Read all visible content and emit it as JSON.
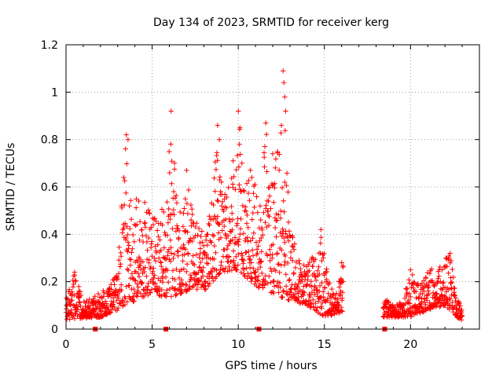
{
  "chart_data": {
    "type": "scatter",
    "title": "Day 134 of 2023, SRMTID for receiver kerg",
    "xlabel": "GPS time / hours",
    "ylabel": "SRMTID / TECUs",
    "xlim": [
      0,
      24
    ],
    "ylim": [
      0,
      1.2
    ],
    "xticks": [
      0,
      5,
      10,
      15,
      20
    ],
    "xtick_labels": [
      "0",
      "5",
      "10",
      "15",
      "20"
    ],
    "yticks": [
      0,
      0.2,
      0.4,
      0.6,
      0.8,
      1.0,
      1.2
    ],
    "ytick_labels": [
      "0",
      "0.2",
      "0.4",
      "0.6",
      "0.8",
      "1",
      "1.2"
    ],
    "grid": true,
    "marker": "+",
    "series_color": "#ff0000",
    "data_gaps_hours": [
      [
        16.1,
        18.4
      ]
    ],
    "event_markers_x": [
      1.7,
      5.8,
      11.2,
      18.5
    ],
    "series": [
      {
        "name": "SRMTID",
        "envelope": [
          {
            "x": 0.0,
            "y": 0.14
          },
          {
            "x": 0.5,
            "y": 0.24
          },
          {
            "x": 1.0,
            "y": 0.12
          },
          {
            "x": 1.5,
            "y": 0.13
          },
          {
            "x": 2.0,
            "y": 0.16
          },
          {
            "x": 2.5,
            "y": 0.17
          },
          {
            "x": 3.0,
            "y": 0.26
          },
          {
            "x": 3.3,
            "y": 0.63
          },
          {
            "x": 3.5,
            "y": 0.82
          },
          {
            "x": 3.9,
            "y": 0.55
          },
          {
            "x": 4.4,
            "y": 0.57
          },
          {
            "x": 4.9,
            "y": 0.52
          },
          {
            "x": 5.3,
            "y": 0.45
          },
          {
            "x": 5.8,
            "y": 0.6
          },
          {
            "x": 6.1,
            "y": 0.92
          },
          {
            "x": 6.5,
            "y": 0.47
          },
          {
            "x": 7.0,
            "y": 0.67
          },
          {
            "x": 7.5,
            "y": 0.47
          },
          {
            "x": 8.0,
            "y": 0.4
          },
          {
            "x": 8.5,
            "y": 0.55
          },
          {
            "x": 8.8,
            "y": 0.86
          },
          {
            "x": 9.3,
            "y": 0.55
          },
          {
            "x": 9.7,
            "y": 0.71
          },
          {
            "x": 10.0,
            "y": 0.92
          },
          {
            "x": 10.4,
            "y": 0.6
          },
          {
            "x": 10.8,
            "y": 0.72
          },
          {
            "x": 11.2,
            "y": 0.48
          },
          {
            "x": 11.6,
            "y": 0.87
          },
          {
            "x": 12.0,
            "y": 0.6
          },
          {
            "x": 12.4,
            "y": 0.88
          },
          {
            "x": 12.6,
            "y": 1.09
          },
          {
            "x": 13.0,
            "y": 0.45
          },
          {
            "x": 13.5,
            "y": 0.3
          },
          {
            "x": 14.0,
            "y": 0.3
          },
          {
            "x": 14.5,
            "y": 0.32
          },
          {
            "x": 14.8,
            "y": 0.42
          },
          {
            "x": 15.2,
            "y": 0.22
          },
          {
            "x": 15.6,
            "y": 0.14
          },
          {
            "x": 16.0,
            "y": 0.28
          },
          {
            "x": 18.5,
            "y": 0.13
          },
          {
            "x": 19.0,
            "y": 0.1
          },
          {
            "x": 19.5,
            "y": 0.12
          },
          {
            "x": 20.0,
            "y": 0.25
          },
          {
            "x": 20.5,
            "y": 0.18
          },
          {
            "x": 21.0,
            "y": 0.24
          },
          {
            "x": 21.5,
            "y": 0.27
          },
          {
            "x": 22.0,
            "y": 0.3
          },
          {
            "x": 22.3,
            "y": 0.32
          },
          {
            "x": 22.7,
            "y": 0.14
          },
          {
            "x": 23.0,
            "y": 0.08
          }
        ],
        "floor": [
          {
            "x": 0.0,
            "y": 0.04
          },
          {
            "x": 2.0,
            "y": 0.05
          },
          {
            "x": 3.0,
            "y": 0.08
          },
          {
            "x": 4.0,
            "y": 0.12
          },
          {
            "x": 5.0,
            "y": 0.15
          },
          {
            "x": 6.0,
            "y": 0.13
          },
          {
            "x": 7.0,
            "y": 0.16
          },
          {
            "x": 8.0,
            "y": 0.16
          },
          {
            "x": 9.0,
            "y": 0.24
          },
          {
            "x": 10.0,
            "y": 0.25
          },
          {
            "x": 11.0,
            "y": 0.18
          },
          {
            "x": 12.0,
            "y": 0.15
          },
          {
            "x": 13.0,
            "y": 0.12
          },
          {
            "x": 14.0,
            "y": 0.1
          },
          {
            "x": 15.0,
            "y": 0.05
          },
          {
            "x": 16.0,
            "y": 0.07
          },
          {
            "x": 18.5,
            "y": 0.05
          },
          {
            "x": 20.0,
            "y": 0.05
          },
          {
            "x": 21.0,
            "y": 0.08
          },
          {
            "x": 22.0,
            "y": 0.1
          },
          {
            "x": 23.0,
            "y": 0.03
          }
        ],
        "points": [
          {
            "x": 0.5,
            "y": 0.24
          },
          {
            "x": 3.5,
            "y": 0.82
          },
          {
            "x": 3.6,
            "y": 0.8
          },
          {
            "x": 6.1,
            "y": 0.92
          },
          {
            "x": 6.3,
            "y": 0.7
          },
          {
            "x": 7.0,
            "y": 0.67
          },
          {
            "x": 8.8,
            "y": 0.86
          },
          {
            "x": 8.9,
            "y": 0.8
          },
          {
            "x": 9.7,
            "y": 0.71
          },
          {
            "x": 10.0,
            "y": 0.92
          },
          {
            "x": 10.1,
            "y": 0.85
          },
          {
            "x": 11.6,
            "y": 0.87
          },
          {
            "x": 12.0,
            "y": 0.74
          },
          {
            "x": 12.5,
            "y": 0.86
          },
          {
            "x": 12.6,
            "y": 1.09
          },
          {
            "x": 12.65,
            "y": 1.04
          },
          {
            "x": 12.7,
            "y": 0.98
          },
          {
            "x": 12.75,
            "y": 0.92
          },
          {
            "x": 12.7,
            "y": 0.62
          },
          {
            "x": 14.8,
            "y": 0.42
          },
          {
            "x": 16.0,
            "y": 0.28
          },
          {
            "x": 20.0,
            "y": 0.25
          },
          {
            "x": 22.3,
            "y": 0.32
          }
        ]
      }
    ]
  }
}
